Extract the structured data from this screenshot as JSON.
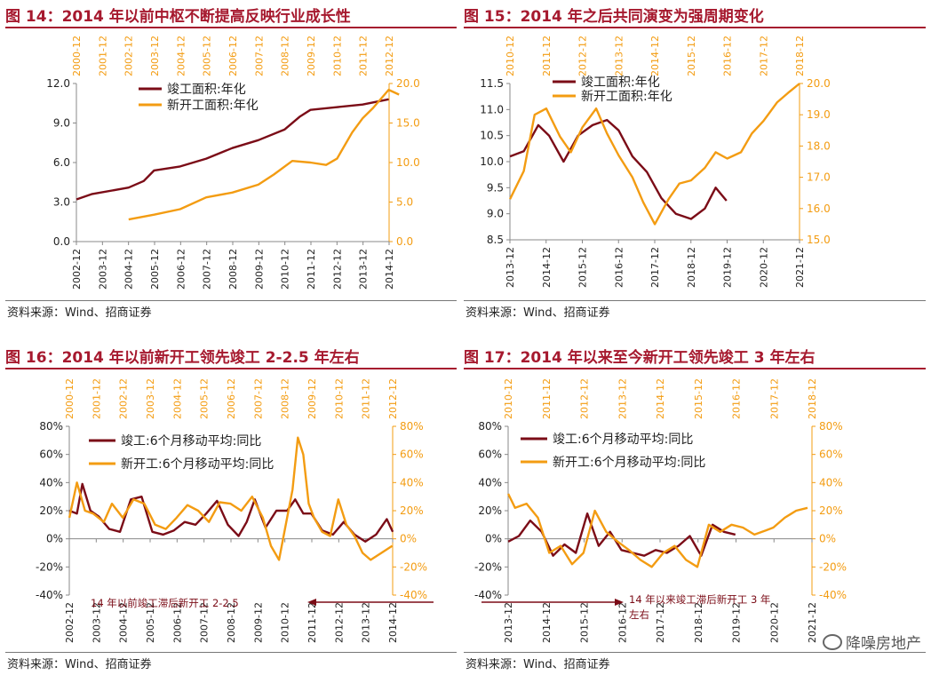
{
  "colors": {
    "completed": "#7B0C17",
    "new": "#F39C12",
    "title": "#A6192E"
  },
  "watermark": {
    "text": "降噪房地产",
    "icon": "wechat-icon"
  },
  "chart_data": [
    {
      "id": "c14",
      "type": "line",
      "title": "图 14：2014 年以前中枢不断提高反映行业成长性",
      "source": "资料来源：Wind、招商证券",
      "bottom_ticks": [
        "2002-12",
        "2003-12",
        "2004-12",
        "2005-12",
        "2006-12",
        "2007-12",
        "2008-12",
        "2009-12",
        "2010-12",
        "2011-12",
        "2012-12",
        "2013-12",
        "2014-12"
      ],
      "top_ticks": [
        "2000-12",
        "2001-12",
        "2002-12",
        "2003-12",
        "2004-12",
        "2005-12",
        "2006-12",
        "2007-12",
        "2008-12",
        "2009-12",
        "2010-12",
        "2011-12",
        "2012-12"
      ],
      "y_left": {
        "min": 0,
        "max": 12,
        "ticks": [
          "0.0",
          "3.0",
          "6.0",
          "9.0",
          "12.0"
        ]
      },
      "y_right": {
        "min": 0,
        "max": 20,
        "ticks": [
          "0.0",
          "5.0",
          "10.0",
          "15.0",
          "20.0"
        ]
      },
      "series": [
        {
          "name": "竣工面积:年化",
          "axis": "left",
          "x": [
            2002.92,
            2003.5,
            2004.92,
            2005.5,
            2005.9,
            2006.9,
            2007.9,
            2008.9,
            2009.9,
            2010.9,
            2011.5,
            2011.9,
            2012.9,
            2013.9,
            2014.9
          ],
          "values": [
            3.2,
            3.6,
            4.1,
            4.6,
            5.4,
            5.7,
            6.3,
            7.1,
            7.7,
            8.5,
            9.5,
            10.0,
            10.2,
            10.4,
            10.8
          ]
        },
        {
          "name": "新开工面积:年化",
          "axis": "right",
          "x": [
            2002.92,
            2003.9,
            2004.9,
            2005.9,
            2006.9,
            2007.9,
            2008.5,
            2009.2,
            2009.9,
            2010.5,
            2010.92,
            2011.5,
            2011.9,
            2012.3,
            2012.9,
            2013.3
          ],
          "values": [
            2.8,
            3.4,
            4.1,
            5.6,
            6.2,
            7.2,
            8.5,
            10.2,
            10.0,
            9.7,
            10.5,
            13.8,
            15.6,
            16.9,
            19.2,
            18.6
          ]
        }
      ]
    },
    {
      "id": "c15",
      "type": "line",
      "title": "图 15：2014 年之后共同演变为强周期变化",
      "source": "资料来源：Wind、招商证券",
      "bottom_ticks": [
        "2013-12",
        "2014-12",
        "2015-12",
        "2016-12",
        "2017-12",
        "2018-12",
        "2019-12",
        "2020-12",
        "2021-12"
      ],
      "top_ticks": [
        "2010-12",
        "2011-12",
        "2012-12",
        "2013-12",
        "2014-12",
        "2015-12",
        "2016-12",
        "2017-12",
        "2018-12"
      ],
      "y_left": {
        "min": 8.5,
        "max": 11.5,
        "ticks": [
          "8.5",
          "9.0",
          "9.5",
          "10.0",
          "10.5",
          "11.0",
          "11.5"
        ]
      },
      "y_right": {
        "min": 15,
        "max": 20,
        "ticks": [
          "15.0",
          "16.0",
          "17.0",
          "18.0",
          "19.0",
          "20.0"
        ]
      },
      "series": [
        {
          "name": "竣工面积:年化",
          "axis": "left",
          "x": [
            2013.92,
            2014.3,
            2014.7,
            2015.0,
            2015.4,
            2015.8,
            2016.2,
            2016.6,
            2016.92,
            2017.3,
            2017.7,
            2018.1,
            2018.5,
            2018.92,
            2019.3,
            2019.6,
            2019.9
          ],
          "values": [
            10.1,
            10.2,
            10.7,
            10.5,
            10.0,
            10.5,
            10.7,
            10.8,
            10.6,
            10.1,
            9.8,
            9.3,
            9.0,
            8.9,
            9.1,
            9.5,
            9.25
          ]
        },
        {
          "name": "新开工面积:年化",
          "axis": "right",
          "x": [
            2010.92,
            2011.3,
            2011.6,
            2011.92,
            2012.3,
            2012.6,
            2012.92,
            2013.3,
            2013.6,
            2013.92,
            2014.3,
            2014.6,
            2014.92,
            2015.3,
            2015.6,
            2015.92,
            2016.3,
            2016.6,
            2016.92,
            2017.3,
            2017.6,
            2017.92,
            2018.3,
            2018.6,
            2018.92
          ],
          "values": [
            16.3,
            17.2,
            19.0,
            19.2,
            18.3,
            17.8,
            18.6,
            19.2,
            18.4,
            17.7,
            17.0,
            16.2,
            15.5,
            16.3,
            16.8,
            16.9,
            17.3,
            17.8,
            17.6,
            17.8,
            18.4,
            18.8,
            19.4,
            19.7,
            20.0
          ]
        }
      ]
    },
    {
      "id": "c16",
      "type": "line",
      "title": "图 16：2014 年以前新开工领先竣工 2-2.5 年左右",
      "source": "资料来源：Wind、招商证券",
      "bottom_ticks": [
        "2002-12",
        "2003-12",
        "2004-12",
        "2005-12",
        "2006-12",
        "2007-12",
        "2008-12",
        "2009-12",
        "2010-12",
        "2011-12",
        "2012-12",
        "2013-12",
        "2014-12"
      ],
      "top_ticks": [
        "2000-12",
        "2001-12",
        "2002-12",
        "2003-12",
        "2004-12",
        "2005-12",
        "2006-12",
        "2007-12",
        "2008-12",
        "2009-12",
        "2010-12",
        "2011-12",
        "2012-12"
      ],
      "y_left": {
        "min": -40,
        "max": 80,
        "ticks": [
          "-40%",
          "-20%",
          "0%",
          "20%",
          "40%",
          "60%",
          "80%"
        ]
      },
      "y_right": {
        "min": -40,
        "max": 80,
        "ticks": [
          "-40%",
          "-20%",
          "0%",
          "20%",
          "40%",
          "60%",
          "80%"
        ]
      },
      "annotation": "14 年以前竣工滞后新开工 2-2.5",
      "series": [
        {
          "name": "竣工:6个月移动平均:同比",
          "axis": "left",
          "x": [
            2002.92,
            2003.2,
            2003.4,
            2003.7,
            2004.0,
            2004.4,
            2004.8,
            2005.2,
            2005.6,
            2006.0,
            2006.4,
            2006.8,
            2007.2,
            2007.6,
            2008.0,
            2008.4,
            2008.8,
            2009.2,
            2009.5,
            2009.8,
            2010.2,
            2010.6,
            2011.0,
            2011.3,
            2011.6,
            2011.9,
            2012.3,
            2012.7,
            2013.1,
            2013.5,
            2013.9,
            2014.3,
            2014.7,
            2014.92
          ],
          "values": [
            20,
            18,
            39,
            20,
            16,
            7,
            5,
            28,
            30,
            5,
            3,
            6,
            12,
            10,
            18,
            27,
            10,
            2,
            12,
            28,
            8,
            20,
            20,
            28,
            18,
            18,
            6,
            3,
            12,
            3,
            -2,
            3,
            14,
            5
          ]
        },
        {
          "name": "新开工:6个月移动平均:同比",
          "axis": "right",
          "x": [
            2000.92,
            2001.2,
            2001.5,
            2001.8,
            2002.2,
            2002.5,
            2002.9,
            2003.3,
            2003.7,
            2004.1,
            2004.5,
            2004.9,
            2005.3,
            2005.7,
            2006.1,
            2006.5,
            2006.9,
            2007.3,
            2007.7,
            2008.1,
            2008.4,
            2008.7,
            2009.0,
            2009.2,
            2009.4,
            2009.6,
            2009.8,
            2010.0,
            2010.3,
            2010.6,
            2010.9,
            2011.2,
            2011.5,
            2011.8,
            2012.1,
            2012.5,
            2012.9
          ],
          "values": [
            15,
            40,
            20,
            18,
            12,
            25,
            15,
            28,
            25,
            10,
            7,
            15,
            24,
            20,
            12,
            26,
            25,
            20,
            30,
            15,
            -5,
            -15,
            15,
            35,
            72,
            60,
            25,
            15,
            5,
            2,
            28,
            10,
            2,
            -10,
            -15,
            -10,
            -5
          ]
        }
      ]
    },
    {
      "id": "c17",
      "type": "line",
      "title": "图 17：2014 年以来至今新开工领先竣工 3 年左右",
      "source": "资料来源：Wind、招商证券",
      "bottom_ticks": [
        "2013-12",
        "2014-12",
        "2015-12",
        "2016-12",
        "2017-12",
        "2018-12",
        "2019-12",
        "2020-12",
        "2021-12"
      ],
      "top_ticks": [
        "2010-12",
        "2011-12",
        "2012-12",
        "2013-12",
        "2014-12",
        "2015-12",
        "2016-12",
        "2017-12",
        "2018-12"
      ],
      "y_left": {
        "min": -40,
        "max": 80,
        "ticks": [
          "-40%",
          "-20%",
          "0%",
          "20%",
          "40%",
          "60%",
          "80%"
        ]
      },
      "y_right": {
        "min": -40,
        "max": 80,
        "ticks": [
          "-40%",
          "-20%",
          "0%",
          "20%",
          "40%",
          "60%",
          "80%"
        ]
      },
      "annotation": "14 年以来竣工滞后新开工 3 年左右",
      "series": [
        {
          "name": "竣工:6个月移动平均:同比",
          "axis": "left",
          "x": [
            2013.92,
            2014.2,
            2014.5,
            2014.8,
            2015.1,
            2015.4,
            2015.7,
            2016.0,
            2016.3,
            2016.6,
            2016.9,
            2017.2,
            2017.5,
            2017.8,
            2018.1,
            2018.4,
            2018.7,
            2019.0,
            2019.3,
            2019.6,
            2019.9
          ],
          "values": [
            -2,
            2,
            13,
            5,
            -12,
            -4,
            -10,
            18,
            -5,
            5,
            -8,
            -10,
            -12,
            -8,
            -10,
            -5,
            2,
            -12,
            10,
            5,
            3
          ]
        },
        {
          "name": "新开工:6个月移动平均:同比",
          "axis": "right",
          "x": [
            2010.92,
            2011.1,
            2011.4,
            2011.7,
            2012.0,
            2012.3,
            2012.6,
            2012.9,
            2013.2,
            2013.5,
            2013.8,
            2014.1,
            2014.4,
            2014.7,
            2015.0,
            2015.3,
            2015.6,
            2015.9,
            2016.2,
            2016.5,
            2016.8,
            2017.1,
            2017.4,
            2017.7,
            2017.9,
            2018.2,
            2018.5,
            2018.8
          ],
          "values": [
            32,
            22,
            25,
            15,
            -10,
            -5,
            -18,
            -10,
            20,
            5,
            -2,
            -8,
            -15,
            -20,
            -10,
            -5,
            -15,
            -20,
            10,
            5,
            10,
            8,
            3,
            6,
            8,
            15,
            20,
            22
          ]
        }
      ]
    }
  ]
}
